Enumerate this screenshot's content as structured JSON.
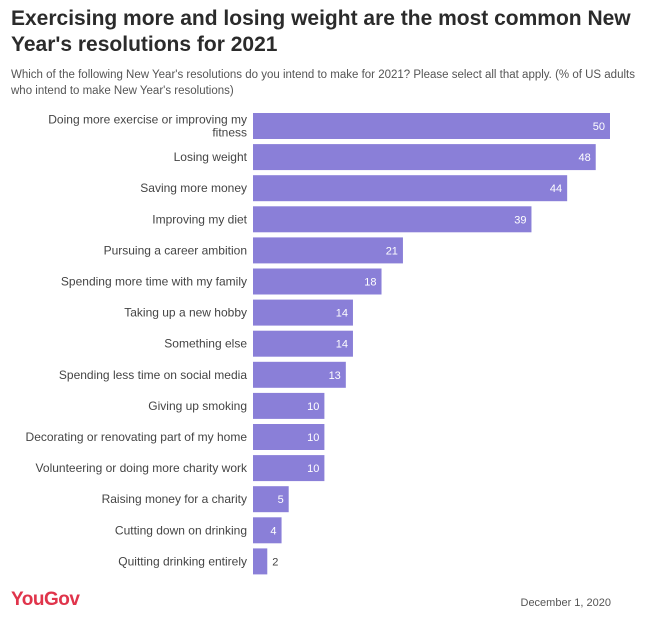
{
  "chart_data": {
    "type": "bar",
    "orientation": "horizontal",
    "title": "Exercising more and losing weight are the most common New Year's resolutions for 2021",
    "subtitle": "Which of the following New Year's resolutions do you intend to make for 2021? Please select all that apply. (% of US adults who intend to make New Year's resolutions)",
    "categories": [
      [
        "Doing more exercise or improving my",
        "fitness"
      ],
      [
        "Losing weight"
      ],
      [
        "Saving more money"
      ],
      [
        "Improving my diet"
      ],
      [
        "Pursuing a career ambition"
      ],
      [
        "Spending more time with my family"
      ],
      [
        "Taking up a new hobby"
      ],
      [
        "Something else"
      ],
      [
        "Spending less time on social media"
      ],
      [
        "Giving up smoking"
      ],
      [
        "Decorating or renovating part of my home"
      ],
      [
        "Volunteering or doing more charity work"
      ],
      [
        "Raising money for a charity"
      ],
      [
        "Cutting down on drinking"
      ],
      [
        "Quitting drinking entirely"
      ]
    ],
    "values": [
      50,
      48,
      44,
      39,
      21,
      18,
      14,
      14,
      13,
      10,
      10,
      10,
      5,
      4,
      2
    ],
    "xlim": [
      0,
      50
    ],
    "bar_color": "#8a7fd8",
    "value_label_color_inside": "#ffffff",
    "value_label_color_outside": "#444444",
    "grid": false,
    "legend": "none"
  },
  "footer": {
    "logo": "YouGov",
    "logo_color": "#e0344b",
    "date": "December 1, 2020"
  }
}
